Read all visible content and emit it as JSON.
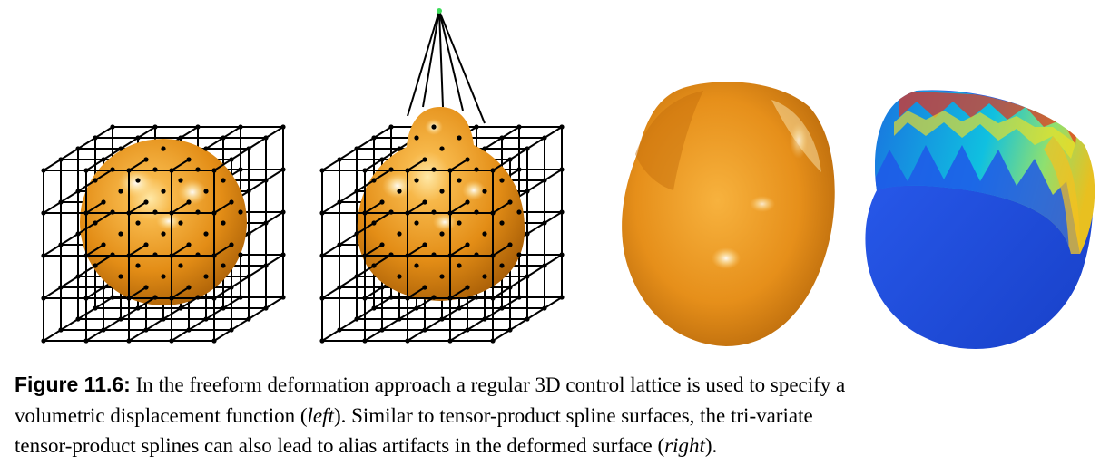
{
  "figure": {
    "label": "Figure 11.6:",
    "panels": [
      {
        "name": "undeformed-lattice-sphere"
      },
      {
        "name": "deformed-lattice-sphere"
      },
      {
        "name": "deformed-surface-shaded"
      },
      {
        "name": "deformed-surface-color-map"
      }
    ],
    "colors": {
      "surface_orange": "#e8921c",
      "lattice": "#000000",
      "heatmap_blue": "#1f4fe0",
      "heatmap_cyan": "#00d0e8",
      "heatmap_red": "#e82010",
      "control_point_moved": "#3ddc5a"
    },
    "caption": {
      "line1_text": "In the freeform deformation approach a regular 3D control lattice is used to specify a",
      "line2_a": "volumetric displacement function (",
      "line2_it": "left",
      "line2_b": ").  Similar to tensor-product spline surfaces, the tri-variate",
      "line3_a": "tensor-product splines can also lead to alias artifacts in the deformed surface (",
      "line3_it": "right",
      "line3_b": ")."
    }
  }
}
